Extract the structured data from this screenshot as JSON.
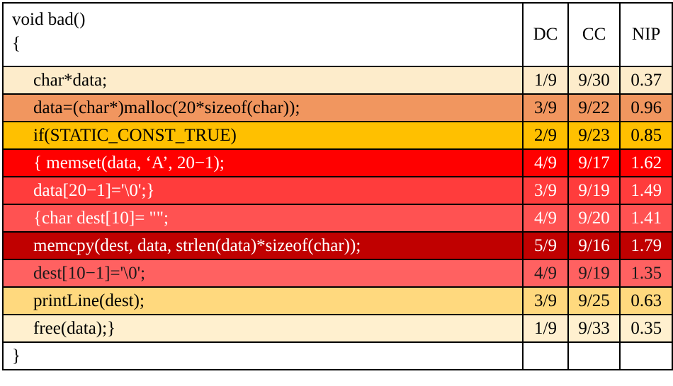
{
  "table": {
    "header": {
      "code": [
        "void bad()",
        "{"
      ],
      "columns": [
        "DC",
        "CC",
        "NIP"
      ]
    },
    "rows": [
      {
        "code": "char*data;",
        "dc": "1/9",
        "cc": "9/30",
        "nip": 0.37,
        "bg": "#fdeccb",
        "fg": "#000000"
      },
      {
        "code": "data=(char*)malloc(20*sizeof(char));",
        "dc": "3/9",
        "cc": "9/22",
        "nip": 0.96,
        "bg": "#f1965f",
        "fg": "#000000"
      },
      {
        "code": "if(STATIC_CONST_TRUE)",
        "dc": "2/9",
        "cc": "9/23",
        "nip": 0.85,
        "bg": "#ffc000",
        "fg": "#000000"
      },
      {
        "code": "{ memset(data, ‘A’, 20−1);",
        "dc": "4/9",
        "cc": "9/17",
        "nip": 1.62,
        "bg": "#ff0000",
        "fg": "#ffffff"
      },
      {
        "code": "data[20−1]='\\0';}",
        "dc": "3/9",
        "cc": "9/19",
        "nip": 1.49,
        "bg": "#ff3c3c",
        "fg": "#ffffff"
      },
      {
        "code": "{char dest[10]= \"\";",
        "dc": "4/9",
        "cc": "9/20",
        "nip": 1.41,
        "bg": "#ff5252",
        "fg": "#ffffff"
      },
      {
        "code": "memcpy(dest, data, strlen(data)*sizeof(char));",
        "dc": "5/9",
        "cc": "9/16",
        "nip": 1.79,
        "bg": "#c00000",
        "fg": "#ffffff"
      },
      {
        "code": "dest[10−1]='\\0';",
        "dc": "4/9",
        "cc": "9/19",
        "nip": 1.35,
        "bg": "#ff6161",
        "fg": "#1a1a1a"
      },
      {
        "code": "printLine(dest);",
        "dc": "3/9",
        "cc": "9/25",
        "nip": 0.63,
        "bg": "#ffd97e",
        "fg": "#000000"
      },
      {
        "code": "free(data);}",
        "dc": "1/9",
        "cc": "9/33",
        "nip": 0.35,
        "bg": "#fff0cf",
        "fg": "#000000"
      }
    ],
    "footer": "}"
  }
}
